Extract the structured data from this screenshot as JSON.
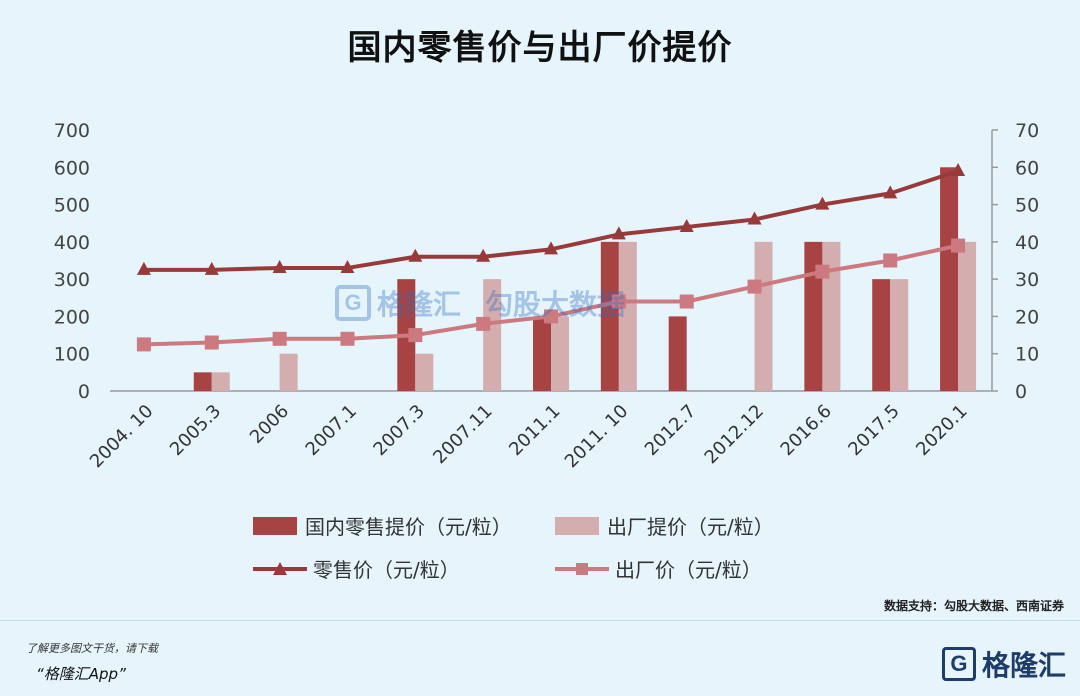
{
  "title": "国内零售价与出厂价提价",
  "chart_data": {
    "type": "bar",
    "title": "国内零售价与出厂价提价",
    "categories": [
      "2004. 10",
      "2005.3",
      "2006",
      "2007.1",
      "2007.3",
      "2007.11",
      "2011.1",
      "2011. 10",
      "2012.7",
      "2012.12",
      "2016.6",
      "2017.5",
      "2020.1"
    ],
    "left_axis": {
      "ylim": [
        0,
        700
      ],
      "ticks": [
        "0",
        "100",
        "200",
        "300",
        "400",
        "500",
        "600",
        "700"
      ]
    },
    "right_axis": {
      "ylim": [
        0,
        70
      ],
      "ticks": [
        "0",
        "10",
        "20",
        "30",
        "40",
        "50",
        "60",
        "70"
      ]
    },
    "series": [
      {
        "name": "国内零售提价（元/粒）",
        "kind": "bar",
        "axis": "left",
        "color": "#a84343",
        "values": [
          0,
          50,
          0,
          0,
          300,
          0,
          200,
          400,
          200,
          0,
          400,
          300,
          600
        ]
      },
      {
        "name": "出厂提价（元/粒）",
        "kind": "bar",
        "axis": "left",
        "color": "#d4aeae",
        "values": [
          0,
          50,
          100,
          0,
          100,
          300,
          200,
          400,
          0,
          400,
          400,
          300,
          400
        ]
      },
      {
        "name": "零售价（元/粒）",
        "kind": "line",
        "marker": "triangle",
        "axis": "right",
        "color": "#993a3a",
        "values": [
          32.5,
          32.5,
          33,
          33,
          36,
          36,
          38,
          42,
          44,
          46,
          50,
          53,
          59
        ]
      },
      {
        "name": "出厂价（元/粒）",
        "kind": "line",
        "marker": "square",
        "axis": "right",
        "color": "#cc7a80",
        "values": [
          12.5,
          13,
          14,
          14,
          15,
          18,
          20,
          24,
          24,
          28,
          32,
          35,
          39
        ]
      }
    ],
    "legend_placement": "bottom",
    "grid": false
  },
  "source": "数据支持：勾股大数据、西南证券",
  "footer": {
    "line1": "了解更多图文干货，请下载",
    "line2": "“格隆汇App”"
  },
  "brand": {
    "mark": "G",
    "name": "格隆汇"
  },
  "watermark": {
    "mark": "G",
    "name": "格隆汇",
    "name2": "勾股大数据"
  }
}
